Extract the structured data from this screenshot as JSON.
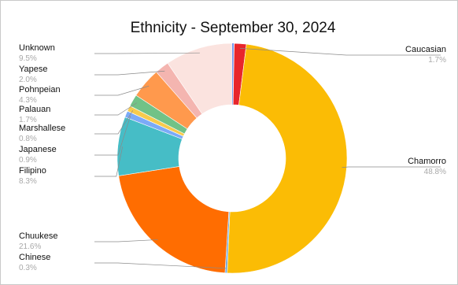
{
  "chart_data": {
    "type": "pie",
    "variant": "donut",
    "title": "Ethnicity - September 30, 2024",
    "slices": [
      {
        "label": "Caucasian",
        "percent_label": "1.7%",
        "value": 1.7,
        "color": "#e8262b"
      },
      {
        "label": "Chamorro",
        "percent_label": "48.8%",
        "value": 48.8,
        "color": "#fbbc05"
      },
      {
        "label": "Chinese",
        "percent_label": "0.3%",
        "value": 0.3,
        "color": "#6fa8dc"
      },
      {
        "label": "Chuukese",
        "percent_label": "21.6%",
        "value": 21.6,
        "color": "#ff6d01"
      },
      {
        "label": "Filipino",
        "percent_label": "8.3%",
        "value": 8.3,
        "color": "#46bdc6"
      },
      {
        "label": "Japanese",
        "percent_label": "0.9%",
        "value": 0.9,
        "color": "#7baaf7"
      },
      {
        "label": "Marshallese",
        "percent_label": "0.8%",
        "value": 0.8,
        "color": "#f7cb4d"
      },
      {
        "label": "Palauan",
        "percent_label": "1.7%",
        "value": 1.7,
        "color": "#71c287"
      },
      {
        "label": "Pohnpeian",
        "percent_label": "4.3%",
        "value": 4.3,
        "color": "#ff994d"
      },
      {
        "label": "Yapese",
        "percent_label": "2.0%",
        "value": 2.0,
        "color": "#f4b5b0"
      },
      {
        "label": "Unknown",
        "percent_label": "9.5%",
        "value": 9.5,
        "color": "#fbe3df"
      }
    ],
    "start_slice_color": "#3c6ee8",
    "legend": "callout-labels"
  }
}
